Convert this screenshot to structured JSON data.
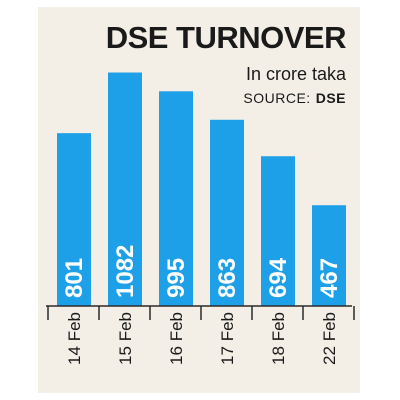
{
  "chart_data": {
    "type": "bar",
    "title": "DSE TURNOVER",
    "subtitle": "In crore taka",
    "source_label": "SOURCE:",
    "source_name": "DSE",
    "xlabel": "",
    "ylabel": "",
    "categories": [
      "14 Feb",
      "15 Feb",
      "16 Feb",
      "17 Feb",
      "18 Feb",
      "22 Feb"
    ],
    "values": [
      801,
      1082,
      995,
      863,
      694,
      467
    ],
    "value_labels": [
      "801",
      "1082",
      "995",
      "863",
      "694",
      "467"
    ],
    "ylim": [
      0,
      1140
    ],
    "grid": false,
    "legend": "none",
    "bar_color": "#1ea0e8",
    "background_color": "#f3efe6"
  }
}
